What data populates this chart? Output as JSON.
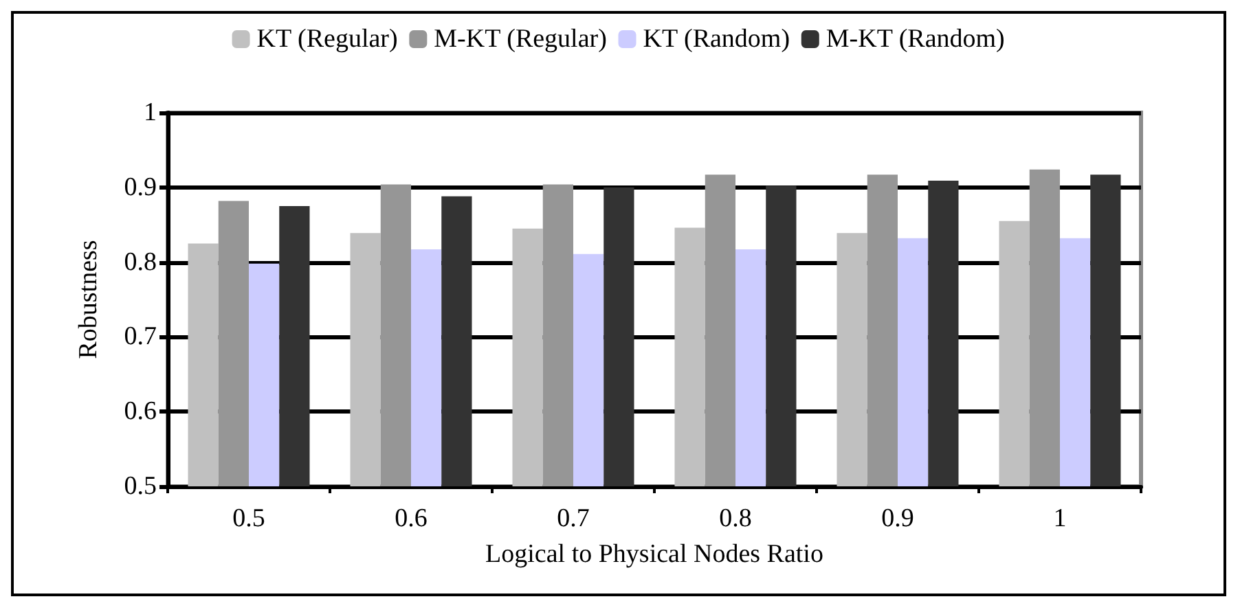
{
  "chart_data": {
    "type": "bar",
    "xlabel": "Logical to Physical Nodes Ratio",
    "ylabel": "Robustness",
    "categories": [
      "0.5",
      "0.6",
      "0.7",
      "0.8",
      "0.9",
      "1"
    ],
    "series": [
      {
        "name": "KT (Regular)",
        "color": "#c0c0c0",
        "values": [
          0.825,
          0.839,
          0.845,
          0.846,
          0.839,
          0.855
        ]
      },
      {
        "name": "M-KT (Regular)",
        "color": "#969696",
        "values": [
          0.882,
          0.904,
          0.904,
          0.917,
          0.917,
          0.924
        ]
      },
      {
        "name": "KT (Random)",
        "color": "#ccccff",
        "values": [
          0.798,
          0.817,
          0.811,
          0.817,
          0.832,
          0.832
        ]
      },
      {
        "name": "M-KT (Random)",
        "color": "#333333",
        "values": [
          0.875,
          0.888,
          0.9,
          0.902,
          0.909,
          0.917
        ]
      }
    ],
    "ylim": [
      0.5,
      1
    ],
    "yticks": [
      0.5,
      0.6,
      0.7,
      0.8,
      0.9,
      1
    ],
    "grid": "y",
    "legend": "top"
  }
}
